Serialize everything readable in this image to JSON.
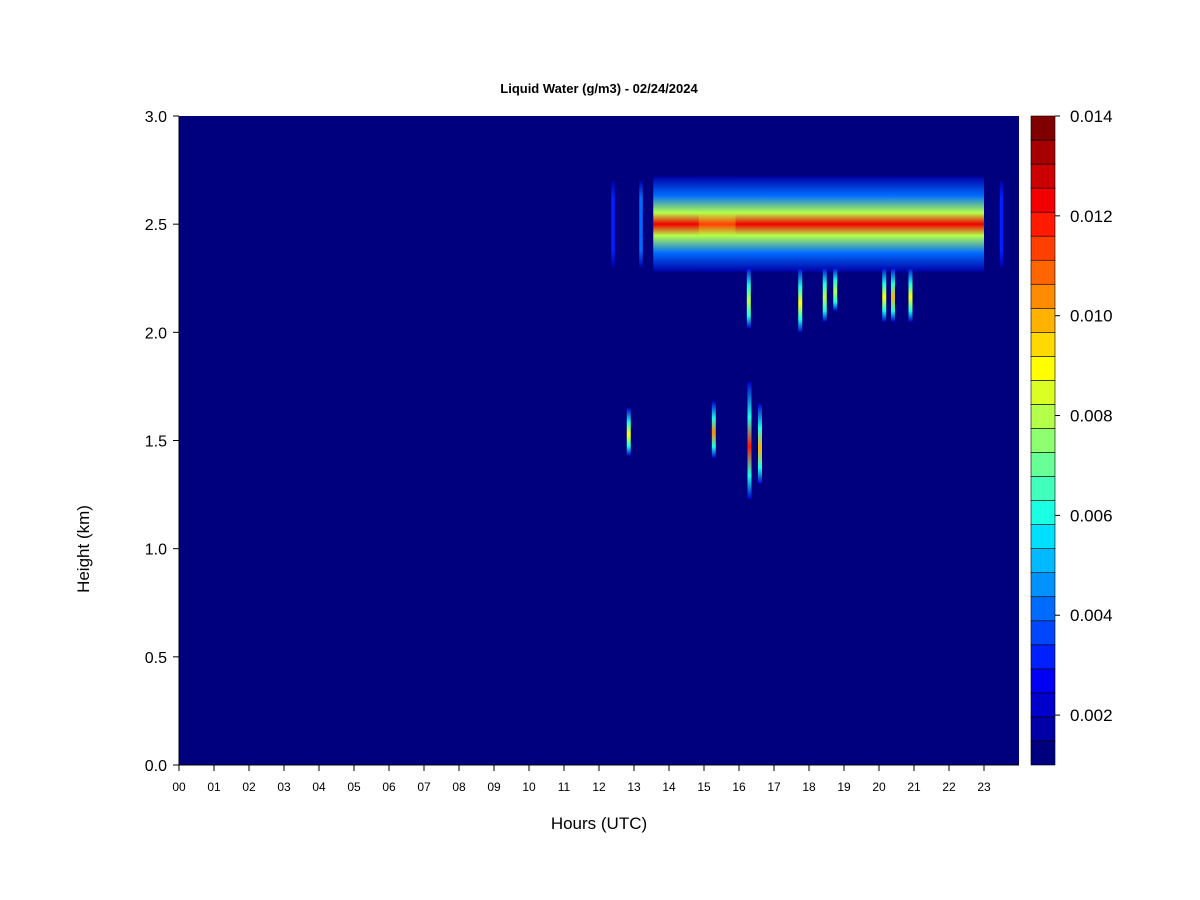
{
  "chart_data": {
    "type": "heatmap",
    "title": "Liquid Water (g/m3) - 02/24/2024",
    "xlabel": "Hours (UTC)",
    "ylabel": "Height (km)",
    "xlim": [
      0,
      24
    ],
    "ylim": [
      0.0,
      3.0
    ],
    "x_ticks": [
      "00",
      "01",
      "02",
      "03",
      "04",
      "05",
      "06",
      "07",
      "08",
      "09",
      "10",
      "11",
      "12",
      "13",
      "14",
      "15",
      "16",
      "17",
      "18",
      "19",
      "20",
      "21",
      "22",
      "23"
    ],
    "y_ticks": [
      "0.0",
      "0.5",
      "1.0",
      "1.5",
      "2.0",
      "2.5",
      "3.0"
    ],
    "colorbar": {
      "min": 0.001,
      "max": 0.014,
      "ticks": [
        "0.002",
        "0.004",
        "0.006",
        "0.008",
        "0.010",
        "0.012",
        "0.014"
      ],
      "tick_values": [
        0.002,
        0.004,
        0.006,
        0.008,
        0.01,
        0.012,
        0.014
      ],
      "colors": [
        "#00007f",
        "#0000a6",
        "#0000cc",
        "#0000f2",
        "#0020ff",
        "#0046ff",
        "#006cff",
        "#0093ff",
        "#00b9ff",
        "#00dfff",
        "#1bffe3",
        "#41ffbd",
        "#68ff96",
        "#8eff70",
        "#b4ff4a",
        "#dbff23",
        "#ffff00",
        "#ffd900",
        "#ffb200",
        "#ff8c00",
        "#ff6600",
        "#ff4000",
        "#ff1a00",
        "#f20000",
        "#cc0000",
        "#a60000",
        "#800000"
      ]
    },
    "background_value": 0.0,
    "features": [
      {
        "name": "cloud-layer-main",
        "x_start": 13.55,
        "x_end": 23.0,
        "center_km": 2.5,
        "half_width_km": 0.22,
        "peak_value": 0.0125
      },
      {
        "name": "cloud-fragment-a",
        "x_start": 12.35,
        "x_end": 12.45,
        "center_km": 2.5,
        "half_width_km": 0.2,
        "peak_value": 0.003
      },
      {
        "name": "cloud-fragment-b",
        "x_start": 13.15,
        "x_end": 13.25,
        "center_km": 2.5,
        "half_width_km": 0.2,
        "peak_value": 0.004
      },
      {
        "name": "cloud-fragment-c",
        "x_start": 14.85,
        "x_end": 15.9,
        "center_km": 2.5,
        "half_width_km": 0.22,
        "peak_value": 0.0115
      },
      {
        "name": "cloud-fragment-d",
        "x_start": 23.45,
        "x_end": 23.55,
        "center_km": 2.5,
        "half_width_km": 0.2,
        "peak_value": 0.003
      },
      {
        "name": "low-streak-1",
        "x": 12.85,
        "y_bottom": 1.43,
        "y_top": 1.65,
        "peak_value": 0.009
      },
      {
        "name": "low-streak-2",
        "x": 15.28,
        "y_bottom": 1.42,
        "y_top": 1.68,
        "peak_value": 0.0105
      },
      {
        "name": "low-streak-3",
        "x": 16.3,
        "y_bottom": 1.23,
        "y_top": 1.77,
        "peak_value": 0.012
      },
      {
        "name": "low-streak-4",
        "x": 16.6,
        "y_bottom": 1.3,
        "y_top": 1.67,
        "peak_value": 0.01
      },
      {
        "name": "drip-1",
        "x": 16.28,
        "y_bottom": 2.02,
        "y_top": 2.3,
        "peak_value": 0.008
      },
      {
        "name": "drip-2",
        "x": 17.75,
        "y_bottom": 2.0,
        "y_top": 2.3,
        "peak_value": 0.009
      },
      {
        "name": "drip-3",
        "x": 18.45,
        "y_bottom": 2.05,
        "y_top": 2.3,
        "peak_value": 0.008
      },
      {
        "name": "drip-4",
        "x": 18.75,
        "y_bottom": 2.1,
        "y_top": 2.3,
        "peak_value": 0.008
      },
      {
        "name": "drip-5",
        "x": 20.15,
        "y_bottom": 2.05,
        "y_top": 2.3,
        "peak_value": 0.009
      },
      {
        "name": "drip-6",
        "x": 20.4,
        "y_bottom": 2.05,
        "y_top": 2.3,
        "peak_value": 0.01
      },
      {
        "name": "drip-7",
        "x": 20.9,
        "y_bottom": 2.05,
        "y_top": 2.3,
        "peak_value": 0.009
      }
    ]
  }
}
